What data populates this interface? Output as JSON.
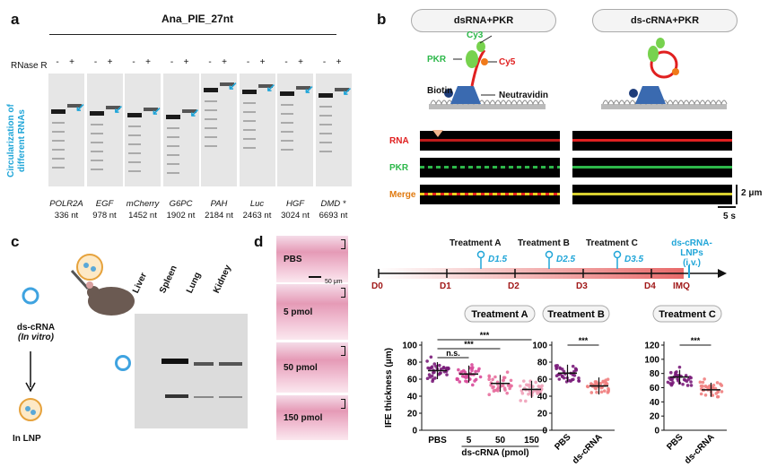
{
  "panels": {
    "a": {
      "letter": "a",
      "title": "Ana_PIE_27nt",
      "rnase_label": "RNase R",
      "signs": [
        "-",
        "+"
      ],
      "yaxis_label_1": "Circularization of",
      "yaxis_label_2": "different RNAs",
      "lanes": [
        {
          "gene": "POLR2A",
          "size": "336 nt"
        },
        {
          "gene": "EGF",
          "size": "978 nt"
        },
        {
          "gene": "mCherry",
          "size": "1452 nt"
        },
        {
          "gene": "G6PC",
          "size": "1902 nt"
        },
        {
          "gene": "PAH",
          "size": "2184 nt"
        },
        {
          "gene": "Luc",
          "size": "2463 nt"
        },
        {
          "gene": "HGF",
          "size": "3024 nt"
        },
        {
          "gene": "DMD",
          "size": "6693 nt",
          "mark": "*"
        }
      ]
    },
    "b": {
      "letter": "b",
      "left_title": "dsRNA+PKR",
      "right_title": "ds-cRNA+PKR",
      "labels": {
        "cy3": "Cy3",
        "cy5": "Cy5",
        "pkr": "PKR",
        "biotin": "Biotin",
        "neutravidin": "Neutravidin"
      },
      "rows": [
        "RNA",
        "PKR",
        "Merge"
      ],
      "scale_y": "2 μm",
      "scale_x": "5 s",
      "colors": {
        "rna": "#e02020",
        "pkr": "#2db84a",
        "merge": "#e07a10"
      }
    },
    "c": {
      "letter": "c",
      "left_label_1": "ds-cRNA",
      "left_label_2": "(In vitro)",
      "bottom_label": "In LNP",
      "organs": [
        "Liver",
        "Spleen",
        "Lung",
        "Kidney"
      ]
    },
    "d": {
      "letter": "d",
      "histology": [
        "PBS",
        "5 pmol",
        "50 pmol",
        "150 pmol"
      ],
      "scale_bar": "50 μm",
      "timeline": {
        "days": [
          "D0",
          "D1",
          "D2",
          "D3",
          "D4"
        ],
        "end_label": "IMQ",
        "treatments": [
          {
            "name": "Treatment A",
            "day": "D1.5"
          },
          {
            "name": "Treatment B",
            "day": "D2.5"
          },
          {
            "name": "Treatment C",
            "day": "D3.5"
          }
        ],
        "lnp_label_1": "ds-cRNA-LNPs",
        "lnp_label_2": "(i.v.)"
      }
    }
  },
  "chart_data": [
    {
      "type": "scatter",
      "title": "Treatment  A",
      "ylabel": "IFE thickness (μm)",
      "xlabel": "ds-cRNA (pmol)",
      "categories": [
        "PBS",
        "5",
        "50",
        "150"
      ],
      "means": [
        70,
        66,
        55,
        48
      ],
      "ylim": [
        0,
        100
      ],
      "yticks": [
        0,
        20,
        40,
        60,
        80,
        100
      ],
      "significance": [
        {
          "from": "PBS",
          "to": "5",
          "label": "n.s."
        },
        {
          "from": "PBS",
          "to": "50",
          "label": "***"
        },
        {
          "from": "PBS",
          "to": "150",
          "label": "***"
        }
      ]
    },
    {
      "type": "scatter",
      "title": "Treatment  B",
      "categories": [
        "PBS",
        "ds-cRNA"
      ],
      "means": [
        67,
        52
      ],
      "ylim": [
        0,
        100
      ],
      "yticks": [
        0,
        20,
        40,
        60,
        80,
        100
      ],
      "significance": [
        {
          "from": "PBS",
          "to": "ds-cRNA",
          "label": "***"
        }
      ]
    },
    {
      "type": "scatter",
      "title": "Treatment C",
      "categories": [
        "PBS",
        "ds-cRNA"
      ],
      "means": [
        75,
        57
      ],
      "ylim": [
        0,
        120
      ],
      "yticks": [
        0,
        20,
        40,
        60,
        80,
        100,
        120
      ],
      "significance": [
        {
          "from": "PBS",
          "to": "ds-cRNA",
          "label": "***"
        }
      ]
    }
  ]
}
